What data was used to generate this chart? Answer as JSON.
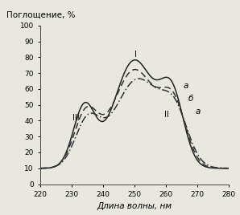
{
  "title": "Поглощение, %",
  "xlabel": "Длина волны, нм",
  "xlim": [
    220,
    280
  ],
  "ylim": [
    0,
    100
  ],
  "xticks": [
    220,
    230,
    240,
    250,
    260,
    270,
    280
  ],
  "yticks": [
    0,
    10,
    20,
    30,
    40,
    50,
    60,
    70,
    80,
    90,
    100
  ],
  "background_color": "#e8e8e0",
  "font_size": 7.5,
  "linewidth": 1.1
}
